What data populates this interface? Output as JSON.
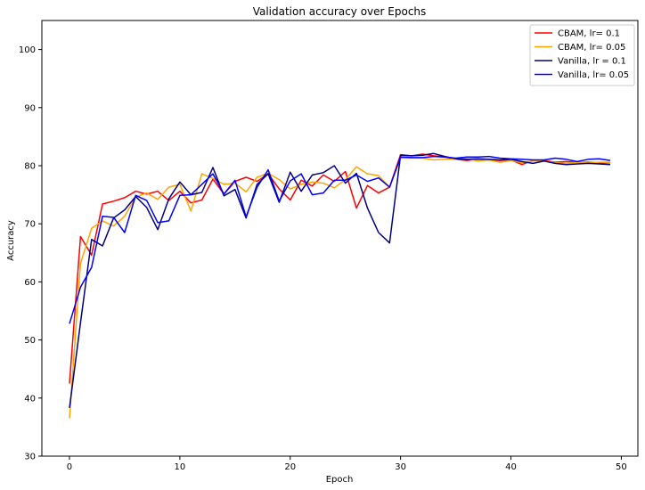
{
  "chart_data": {
    "type": "line",
    "title": "Validation accuracy over Epochs",
    "xlabel": "Epoch",
    "ylabel": "Accuracy",
    "xlim": [
      -2.5,
      51.5
    ],
    "ylim": [
      30,
      105
    ],
    "xticks": [
      0,
      10,
      20,
      30,
      40,
      50
    ],
    "yticks": [
      30,
      40,
      50,
      60,
      70,
      80,
      90,
      100
    ],
    "grid": false,
    "legend_position": "top-right",
    "x": [
      0,
      1,
      2,
      3,
      4,
      5,
      6,
      7,
      8,
      9,
      10,
      11,
      12,
      13,
      14,
      15,
      16,
      17,
      18,
      19,
      20,
      21,
      22,
      23,
      24,
      25,
      26,
      27,
      28,
      29,
      30,
      31,
      32,
      33,
      34,
      35,
      36,
      37,
      38,
      39,
      40,
      41,
      42,
      43,
      44,
      45,
      46,
      47,
      48,
      49
    ],
    "series": [
      {
        "name": "CBAM, lr= 0.1",
        "color": "#ff0000",
        "values": [
          42.5,
          67.8,
          64.6,
          73.4,
          73.9,
          74.5,
          75.6,
          75.1,
          75.6,
          74.0,
          75.6,
          73.6,
          74.1,
          77.7,
          75.1,
          77.3,
          78.0,
          77.3,
          78.6,
          76.0,
          74.1,
          77.5,
          76.5,
          78.4,
          77.3,
          79.0,
          72.7,
          76.6,
          75.3,
          76.3,
          81.9,
          81.7,
          82.0,
          81.7,
          81.5,
          81.1,
          80.9,
          81.1,
          81.0,
          80.9,
          81.0,
          80.2,
          80.9,
          80.9,
          80.6,
          80.7,
          80.6,
          80.6,
          80.5,
          80.5
        ]
      },
      {
        "name": "CBAM, lr= 0.05",
        "color": "#ffa500",
        "values": [
          36.5,
          63.2,
          69.2,
          70.5,
          69.6,
          71.3,
          74.6,
          75.3,
          74.2,
          76.3,
          76.8,
          72.2,
          78.6,
          77.8,
          76.8,
          77.0,
          75.5,
          78.0,
          78.7,
          77.6,
          76.0,
          76.8,
          77.2,
          77.0,
          76.2,
          77.6,
          79.8,
          78.6,
          78.3,
          76.3,
          81.3,
          81.3,
          81.3,
          81.0,
          81.1,
          81.1,
          81.2,
          80.8,
          81.0,
          80.6,
          80.9,
          80.5,
          80.8,
          80.8,
          80.5,
          80.4,
          80.6,
          80.5,
          80.6,
          80.6
        ]
      },
      {
        "name": "Vanilla, lr = 0.1",
        "color": "#000080",
        "values": [
          38.3,
          53.0,
          67.3,
          66.2,
          71.0,
          72.4,
          74.7,
          72.8,
          69.0,
          74.3,
          77.2,
          75.0,
          75.4,
          79.7,
          74.8,
          75.9,
          71.0,
          76.8,
          78.6,
          73.7,
          78.9,
          75.6,
          78.4,
          78.8,
          80.0,
          77.0,
          78.7,
          72.7,
          68.5,
          66.7,
          81.8,
          81.7,
          81.8,
          82.1,
          81.6,
          81.2,
          81.1,
          81.2,
          81.1,
          81.0,
          81.1,
          80.7,
          80.4,
          80.8,
          80.4,
          80.2,
          80.3,
          80.4,
          80.3,
          80.2
        ]
      },
      {
        "name": "Vanilla, lr= 0.05",
        "color": "#0000ff",
        "values": [
          52.8,
          59.1,
          62.5,
          71.3,
          71.1,
          68.5,
          74.9,
          74.0,
          70.2,
          70.5,
          74.9,
          75.0,
          76.8,
          78.6,
          75.1,
          77.5,
          71.2,
          76.3,
          79.3,
          73.9,
          77.4,
          78.6,
          75.0,
          75.3,
          77.5,
          77.5,
          78.4,
          77.3,
          77.9,
          76.3,
          81.5,
          81.4,
          81.4,
          81.6,
          81.5,
          81.3,
          81.5,
          81.5,
          81.6,
          81.3,
          81.2,
          81.1,
          81.0,
          81.0,
          81.3,
          81.1,
          80.7,
          81.1,
          81.2,
          80.9
        ]
      }
    ]
  }
}
